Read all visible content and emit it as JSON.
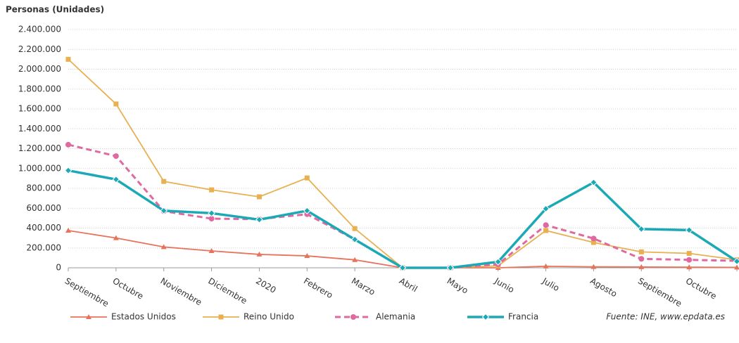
{
  "chart_data": {
    "type": "line",
    "y_label": "Personas (Unidades)",
    "source": "Fuente: INE, www.epdata.es",
    "categories": [
      "Septiembre",
      "Octubre",
      "Noviembre",
      "Diciembre",
      "2020",
      "Febrero",
      "Marzo",
      "Abril",
      "Mayo",
      "Junio",
      "Julio",
      "Agosto",
      "Septiembre",
      "Octubre",
      null
    ],
    "ylim": [
      0,
      2400000
    ],
    "yticks": [
      0,
      {
        "value": 200000,
        "label": "200.000"
      },
      {
        "value": 400000,
        "label": "400.000"
      },
      {
        "value": 600000,
        "label": "600.000"
      },
      {
        "value": 800000,
        "label": "800.000"
      },
      {
        "value": 1000000,
        "label": "1.000.000"
      },
      {
        "value": 1200000,
        "label": "1.200.000"
      },
      {
        "value": 1400000,
        "label": "1.400.000"
      },
      {
        "value": 1600000,
        "label": "1.600.000"
      },
      {
        "value": 1800000,
        "label": "1.800.000"
      },
      {
        "value": 2000000,
        "label": "2.000.000"
      },
      {
        "value": 2200000,
        "label": "2.200.000"
      },
      {
        "value": 2400000,
        "label": "2.400.000"
      }
    ],
    "grid": true,
    "series": [
      {
        "name": "Estados Unidos",
        "color": "#e8735a",
        "marker": "triangle",
        "values": [
          375000,
          300000,
          210000,
          170000,
          135000,
          120000,
          80000,
          0,
          0,
          0,
          15000,
          10000,
          8000,
          6000,
          4000
        ]
      },
      {
        "name": "Reino Unido",
        "color": "#e8b050",
        "marker": "square",
        "values": [
          2100000,
          1650000,
          870000,
          785000,
          715000,
          905000,
          395000,
          0,
          0,
          20000,
          375000,
          255000,
          160000,
          145000,
          80000
        ]
      },
      {
        "name": "Alemania",
        "color": "#e06aa0",
        "marker": "circle",
        "dashed": true,
        "values": [
          1240000,
          1125000,
          570000,
          495000,
          490000,
          540000,
          285000,
          0,
          0,
          35000,
          430000,
          295000,
          90000,
          80000,
          70000
        ]
      },
      {
        "name": "Francia",
        "color": "#1aa9b5",
        "marker": "diamond",
        "values": [
          980000,
          890000,
          575000,
          550000,
          485000,
          575000,
          285000,
          0,
          0,
          60000,
          595000,
          860000,
          390000,
          380000,
          65000
        ]
      }
    ]
  }
}
